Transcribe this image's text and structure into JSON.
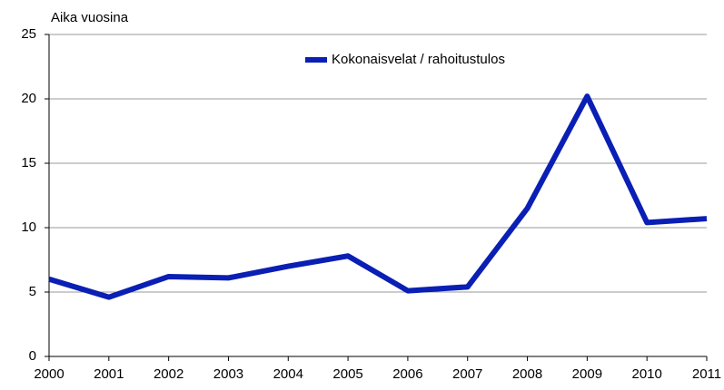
{
  "chart_data": {
    "type": "line",
    "y_axis_label": "Aika vuosina",
    "x": [
      2000,
      2001,
      2002,
      2003,
      2004,
      2005,
      2006,
      2007,
      2008,
      2009,
      2010,
      2011
    ],
    "series": [
      {
        "name": "Kokonaisvelat / rahoitustulos",
        "color": "#0a1fb4",
        "values": [
          6.0,
          4.6,
          6.2,
          6.1,
          7.0,
          7.8,
          5.1,
          5.4,
          11.5,
          20.2,
          10.4,
          10.7
        ]
      }
    ],
    "xlim": [
      2000,
      2011
    ],
    "xticks": [
      2000,
      2001,
      2002,
      2003,
      2004,
      2005,
      2006,
      2007,
      2008,
      2009,
      2010,
      2011
    ],
    "ylim": [
      0,
      25
    ],
    "yticks": [
      0,
      5,
      10,
      15,
      20,
      25
    ],
    "grid": true,
    "legend": "top"
  }
}
